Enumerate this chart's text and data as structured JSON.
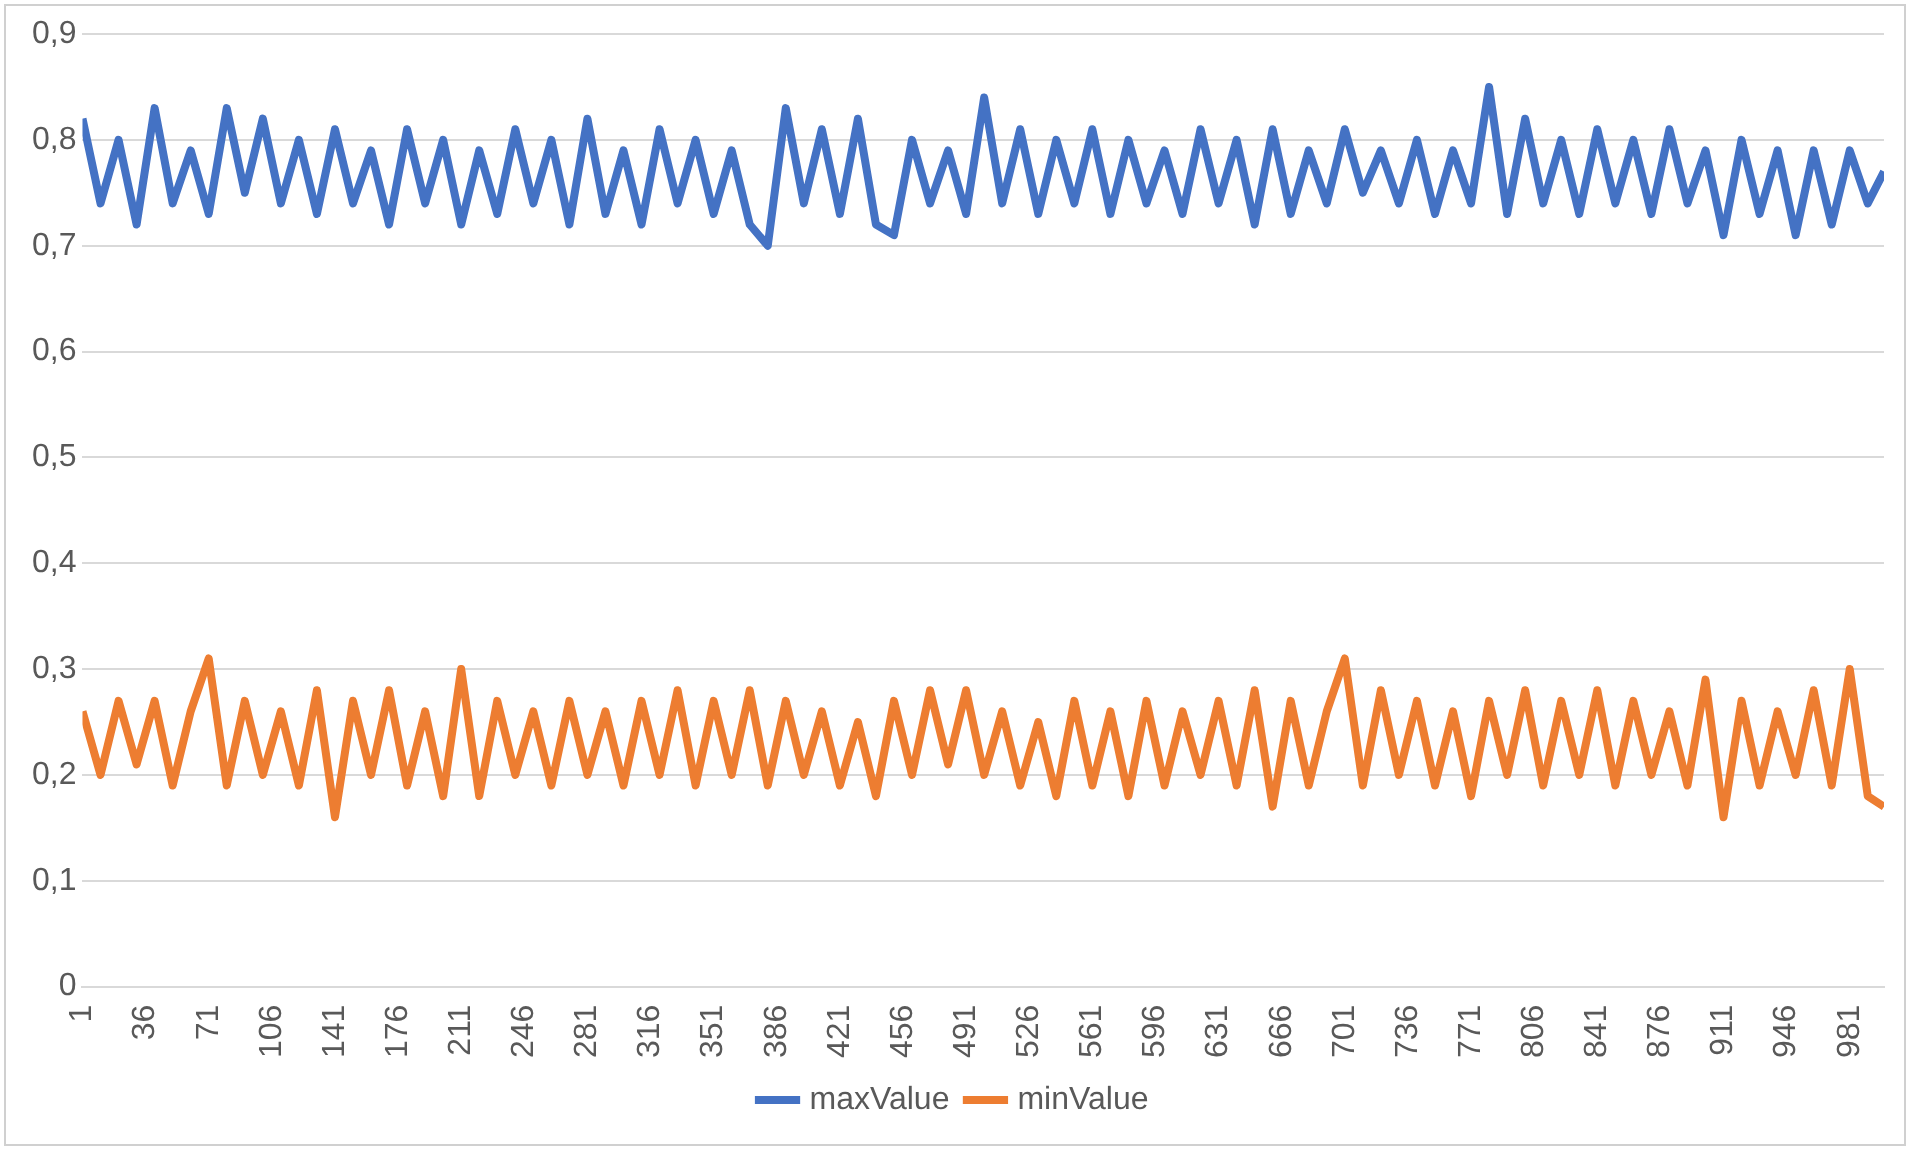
{
  "chart_data": {
    "type": "line",
    "x": [
      1,
      11,
      21,
      31,
      41,
      51,
      61,
      71,
      81,
      91,
      101,
      111,
      121,
      131,
      141,
      151,
      161,
      171,
      181,
      191,
      201,
      211,
      221,
      231,
      241,
      251,
      261,
      271,
      281,
      291,
      301,
      311,
      321,
      331,
      341,
      351,
      361,
      371,
      381,
      391,
      401,
      411,
      421,
      431,
      441,
      451,
      461,
      471,
      481,
      491,
      501,
      511,
      521,
      531,
      541,
      551,
      561,
      571,
      581,
      591,
      601,
      611,
      621,
      631,
      641,
      651,
      661,
      671,
      681,
      691,
      701,
      711,
      721,
      731,
      741,
      751,
      761,
      771,
      781,
      791,
      801,
      811,
      821,
      831,
      841,
      851,
      861,
      871,
      881,
      891,
      901,
      911,
      921,
      931,
      941,
      951,
      961,
      971,
      981,
      991,
      1000
    ],
    "series": [
      {
        "name": "maxValue",
        "color": "#4472c4",
        "values": [
          0.82,
          0.74,
          0.8,
          0.72,
          0.83,
          0.74,
          0.79,
          0.73,
          0.83,
          0.75,
          0.82,
          0.74,
          0.8,
          0.73,
          0.81,
          0.74,
          0.79,
          0.72,
          0.81,
          0.74,
          0.8,
          0.72,
          0.79,
          0.73,
          0.81,
          0.74,
          0.8,
          0.72,
          0.82,
          0.73,
          0.79,
          0.72,
          0.81,
          0.74,
          0.8,
          0.73,
          0.79,
          0.72,
          0.7,
          0.83,
          0.74,
          0.81,
          0.73,
          0.82,
          0.72,
          0.71,
          0.8,
          0.74,
          0.79,
          0.73,
          0.84,
          0.74,
          0.81,
          0.73,
          0.8,
          0.74,
          0.81,
          0.73,
          0.8,
          0.74,
          0.79,
          0.73,
          0.81,
          0.74,
          0.8,
          0.72,
          0.81,
          0.73,
          0.79,
          0.74,
          0.81,
          0.75,
          0.79,
          0.74,
          0.8,
          0.73,
          0.79,
          0.74,
          0.85,
          0.73,
          0.82,
          0.74,
          0.8,
          0.73,
          0.81,
          0.74,
          0.8,
          0.73,
          0.81,
          0.74,
          0.79,
          0.71,
          0.8,
          0.73,
          0.79,
          0.71,
          0.79,
          0.72,
          0.79,
          0.74,
          0.77
        ]
      },
      {
        "name": "minValue",
        "color": "#ed7d31",
        "values": [
          0.26,
          0.2,
          0.27,
          0.21,
          0.27,
          0.19,
          0.26,
          0.31,
          0.19,
          0.27,
          0.2,
          0.26,
          0.19,
          0.28,
          0.16,
          0.27,
          0.2,
          0.28,
          0.19,
          0.26,
          0.18,
          0.3,
          0.18,
          0.27,
          0.2,
          0.26,
          0.19,
          0.27,
          0.2,
          0.26,
          0.19,
          0.27,
          0.2,
          0.28,
          0.19,
          0.27,
          0.2,
          0.28,
          0.19,
          0.27,
          0.2,
          0.26,
          0.19,
          0.25,
          0.18,
          0.27,
          0.2,
          0.28,
          0.21,
          0.28,
          0.2,
          0.26,
          0.19,
          0.25,
          0.18,
          0.27,
          0.19,
          0.26,
          0.18,
          0.27,
          0.19,
          0.26,
          0.2,
          0.27,
          0.19,
          0.28,
          0.17,
          0.27,
          0.19,
          0.26,
          0.31,
          0.19,
          0.28,
          0.2,
          0.27,
          0.19,
          0.26,
          0.18,
          0.27,
          0.2,
          0.28,
          0.19,
          0.27,
          0.2,
          0.28,
          0.19,
          0.27,
          0.2,
          0.26,
          0.19,
          0.29,
          0.16,
          0.27,
          0.19,
          0.26,
          0.2,
          0.28,
          0.19,
          0.3,
          0.18,
          0.17
        ]
      }
    ],
    "xlim": [
      1,
      1000
    ],
    "xticks": [
      1,
      36,
      71,
      106,
      141,
      176,
      211,
      246,
      281,
      316,
      351,
      386,
      421,
      456,
      491,
      526,
      561,
      596,
      631,
      666,
      701,
      736,
      771,
      806,
      841,
      876,
      911,
      946,
      981
    ],
    "ylim": [
      0,
      0.9
    ],
    "yticks": [
      {
        "value": 0,
        "label": "0"
      },
      {
        "value": 0.1,
        "label": "0,1"
      },
      {
        "value": 0.2,
        "label": "0,2"
      },
      {
        "value": 0.3,
        "label": "0,3"
      },
      {
        "value": 0.4,
        "label": "0,4"
      },
      {
        "value": 0.5,
        "label": "0,5"
      },
      {
        "value": 0.6,
        "label": "0,6"
      },
      {
        "value": 0.7,
        "label": "0,7"
      },
      {
        "value": 0.8,
        "label": "0,8"
      },
      {
        "value": 0.9,
        "label": "0,9"
      }
    ],
    "grid": "y",
    "legend": "bottom",
    "marker": "none",
    "line_style": "solid"
  }
}
